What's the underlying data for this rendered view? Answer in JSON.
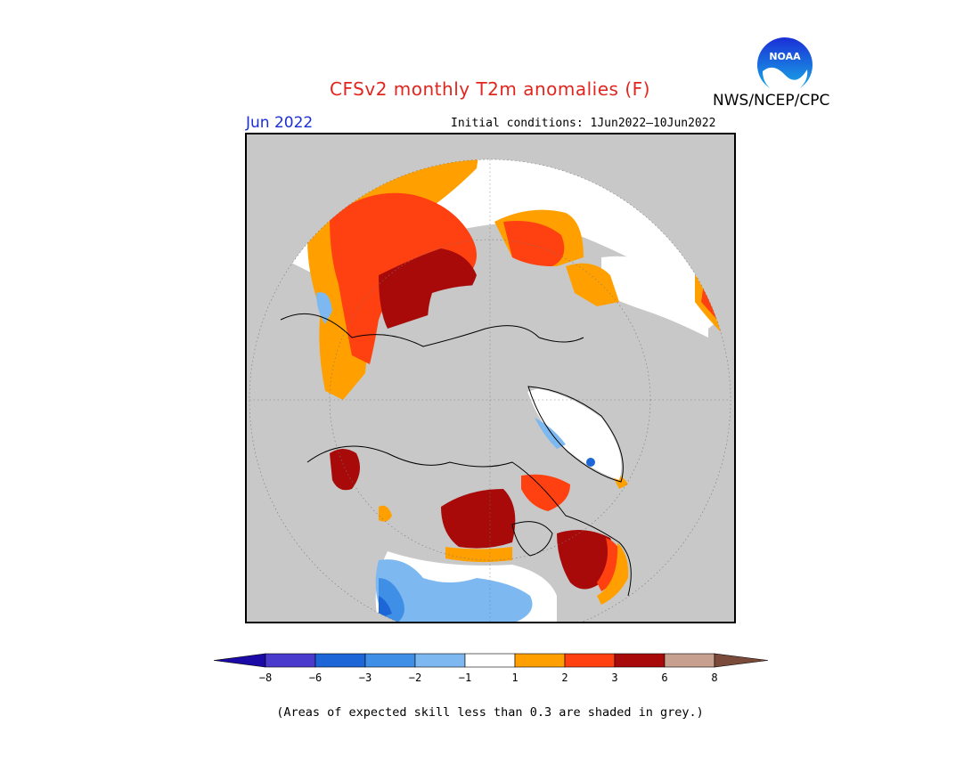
{
  "header": {
    "title": "CFSv2 monthly T2m anomalies (F)",
    "agency": "NWS/NCEP/CPC",
    "month": "Jun 2022",
    "initial_conditions": "Initial conditions: 1Jun2022–10Jun2022"
  },
  "logo": {
    "text": "NOAA",
    "icon": "noaa-logo"
  },
  "legend": {
    "ticks": [
      "−8",
      "−6",
      "−3",
      "−2",
      "−1",
      "1",
      "2",
      "3",
      "6",
      "8"
    ],
    "colors": {
      "below_minus8": "#1c0aa6",
      "m8_m6": "#4a3bcc",
      "m6_m3": "#1d66d8",
      "m3_m2": "#3f8fe6",
      "m2_m1": "#7db9f0",
      "m1_p1": "#ffffff",
      "p1_p2": "#ffa000",
      "p2_p3": "#ff4010",
      "p3_p6": "#a80a0a",
      "p6_p8": "#c8a090",
      "above_p8": "#7a4a3a"
    }
  },
  "map_colors": {
    "low_skill_grey": "#c8c8c8",
    "land_outline": "#000000"
  },
  "footnote": "(Areas of expected skill less than 0.3 are shaded in grey.)"
}
